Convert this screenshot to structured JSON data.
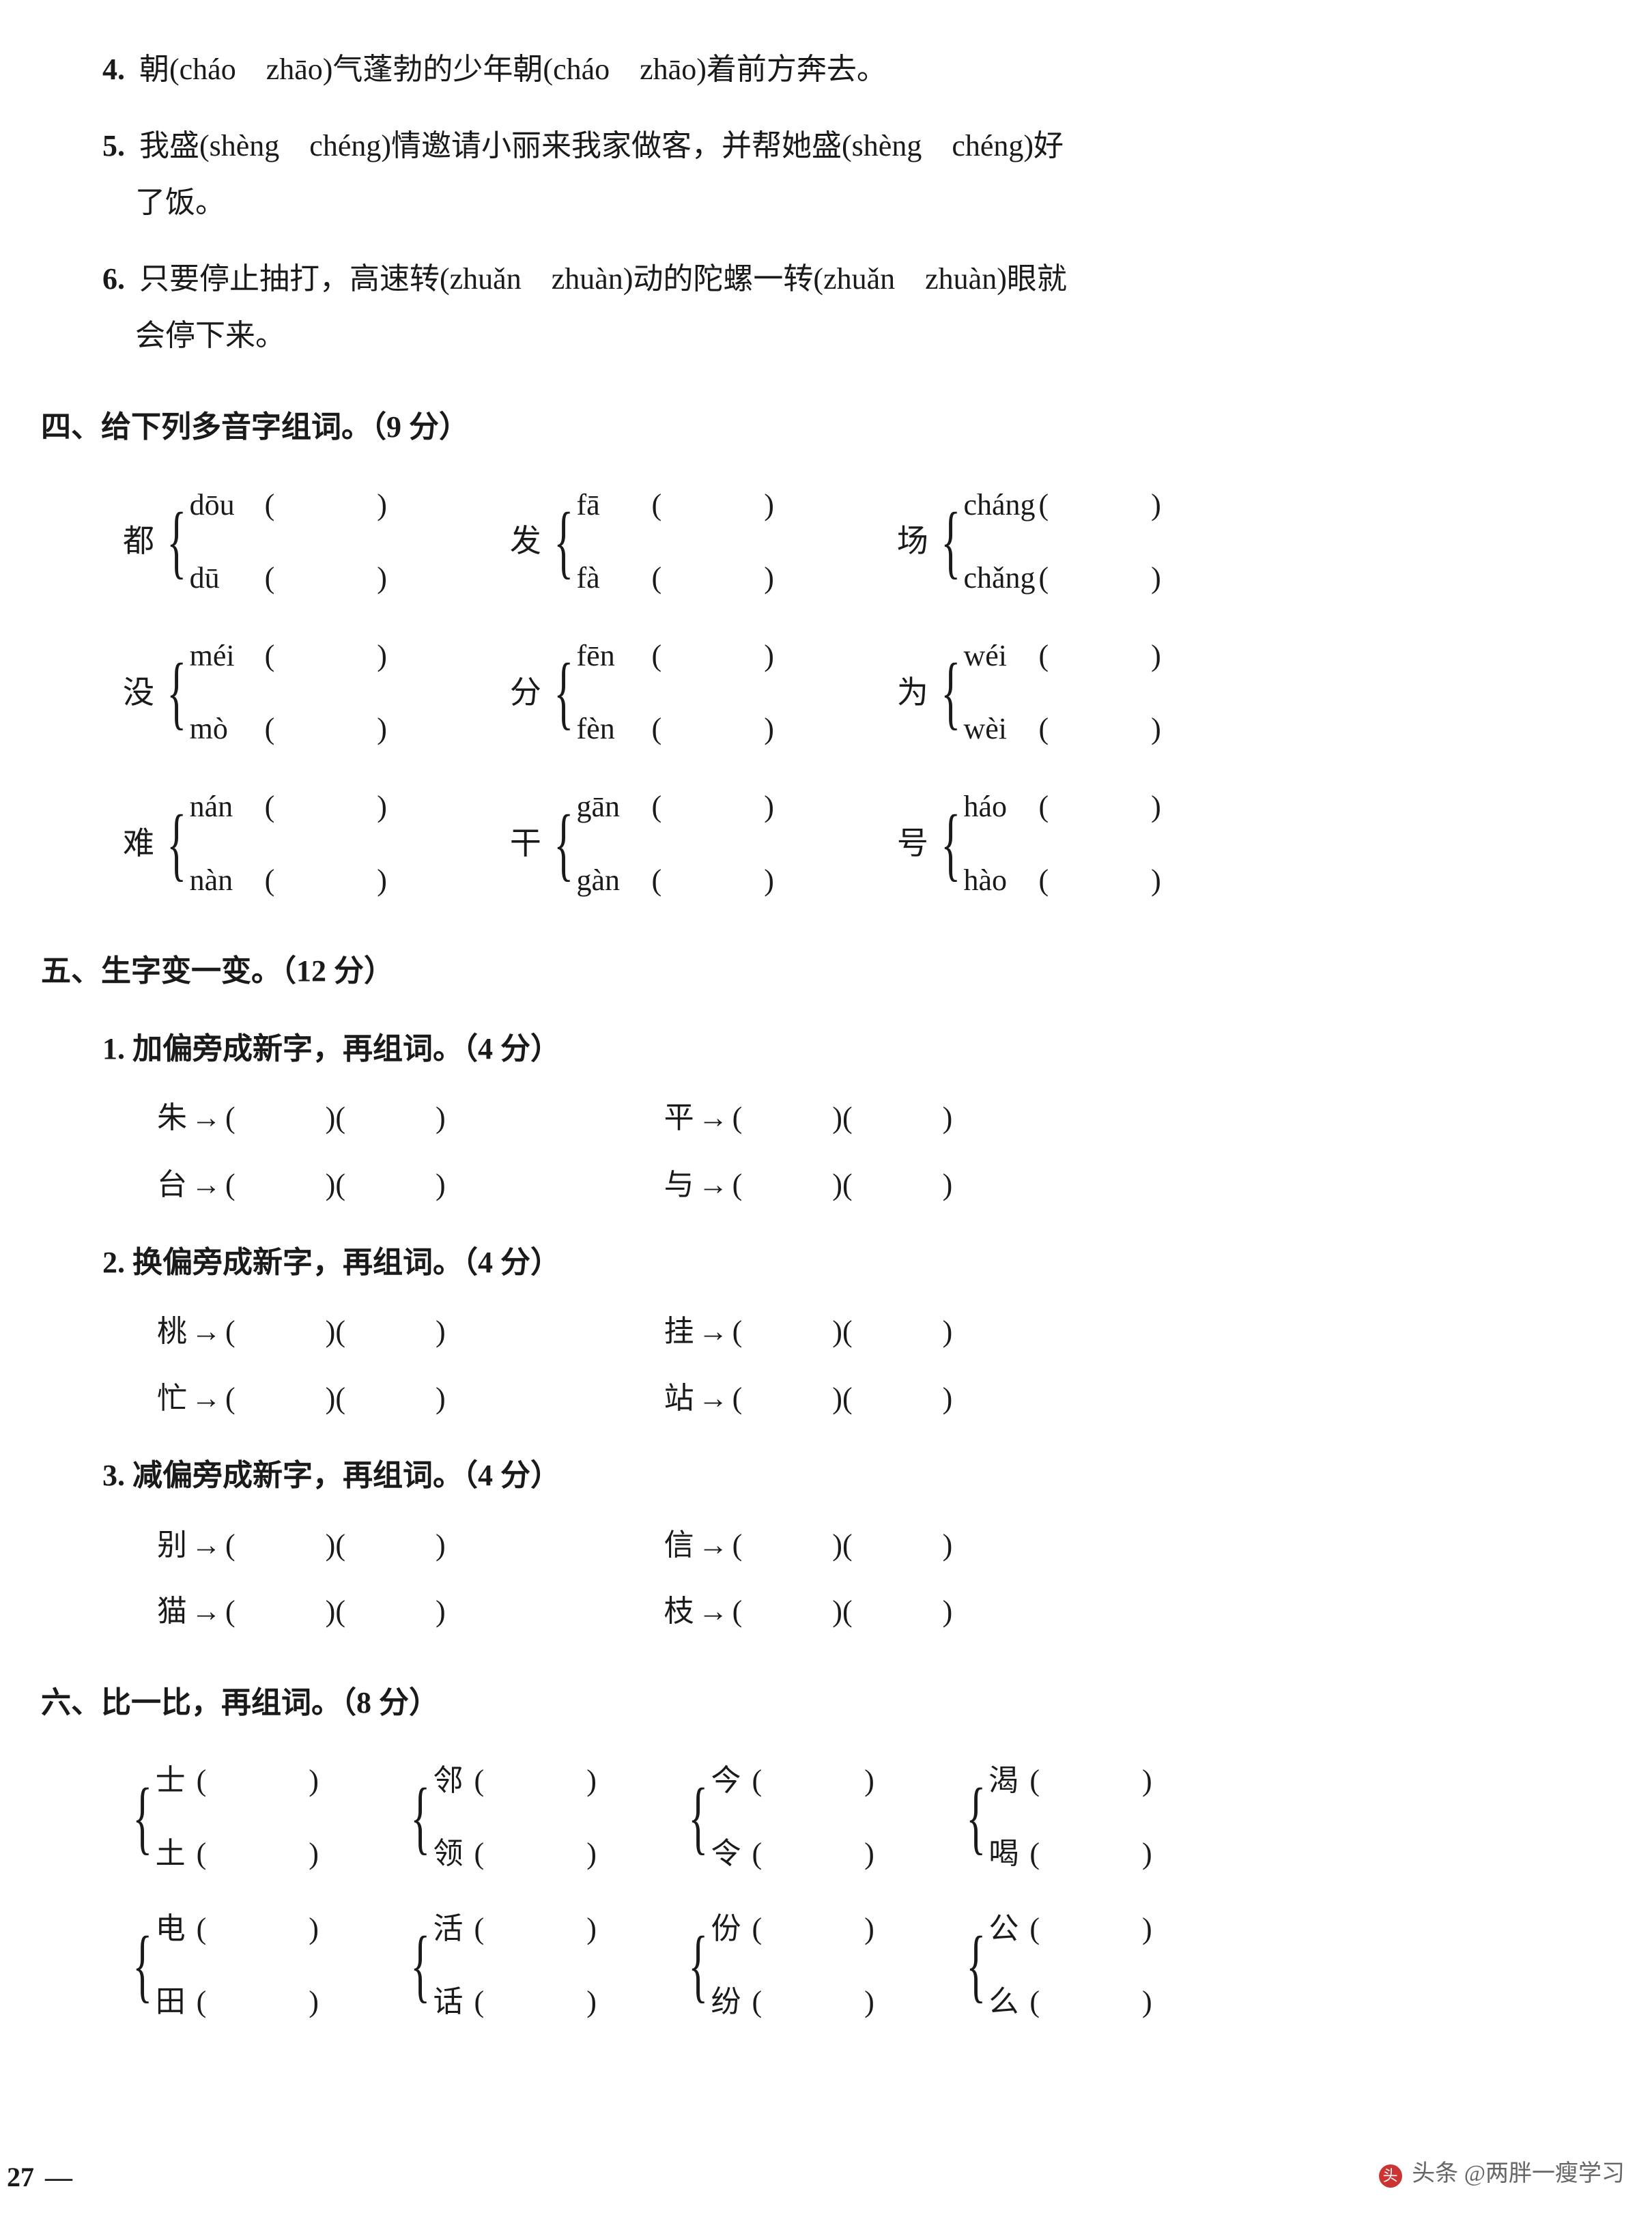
{
  "q3": {
    "items": [
      {
        "no": "4.",
        "segments": [
          "朝(cháo　zhāo)气蓬勃的少年朝(cháo　zhāo)着前方奔去。"
        ]
      },
      {
        "no": "5.",
        "segments": [
          "我盛(shèng　chéng)情邀请小丽来我家做客，并帮她盛(shèng　chéng)好",
          "了饭。"
        ]
      },
      {
        "no": "6.",
        "segments": [
          "只要停止抽打，高速转(zhuǎn　zhuàn)动的陀螺一转(zhuǎn　zhuàn)眼就",
          "会停下来。"
        ]
      }
    ]
  },
  "sec4": {
    "heading": "四、给下列多音字组词。（9 分）",
    "rows": [
      [
        {
          "char": "都",
          "readings": [
            "dōu",
            "dū"
          ]
        },
        {
          "char": "发",
          "readings": [
            "fā",
            "fà"
          ]
        },
        {
          "char": "场",
          "readings": [
            "cháng",
            "chǎng"
          ]
        }
      ],
      [
        {
          "char": "没",
          "readings": [
            "méi",
            "mò"
          ]
        },
        {
          "char": "分",
          "readings": [
            "fēn",
            "fèn"
          ]
        },
        {
          "char": "为",
          "readings": [
            "wéi",
            "wèi"
          ]
        }
      ],
      [
        {
          "char": "难",
          "readings": [
            "nán",
            "nàn"
          ]
        },
        {
          "char": "干",
          "readings": [
            "gān",
            "gàn"
          ]
        },
        {
          "char": "号",
          "readings": [
            "háo",
            "hào"
          ]
        }
      ]
    ]
  },
  "sec5": {
    "heading": "五、生字变一变。（12 分）",
    "subs": [
      {
        "title": "1. 加偏旁成新字，再组词。（4 分）",
        "rows": [
          [
            {
              "base": "朱"
            },
            {
              "base": "平"
            }
          ],
          [
            {
              "base": "台"
            },
            {
              "base": "与"
            }
          ]
        ]
      },
      {
        "title": "2. 换偏旁成新字，再组词。（4 分）",
        "rows": [
          [
            {
              "base": "桃"
            },
            {
              "base": "挂"
            }
          ],
          [
            {
              "base": "忙"
            },
            {
              "base": "站"
            }
          ]
        ]
      },
      {
        "title": "3. 减偏旁成新字，再组词。（4 分）",
        "rows": [
          [
            {
              "base": "别"
            },
            {
              "base": "信"
            }
          ],
          [
            {
              "base": "猫"
            },
            {
              "base": "枝"
            }
          ]
        ]
      }
    ]
  },
  "sec6": {
    "heading": "六、比一比，再组词。（8 分）",
    "rows": [
      [
        {
          "pair": [
            "士",
            "土"
          ]
        },
        {
          "pair": [
            "邻",
            "领"
          ]
        },
        {
          "pair": [
            "今",
            "令"
          ]
        },
        {
          "pair": [
            "渴",
            "喝"
          ]
        }
      ],
      [
        {
          "pair": [
            "电",
            "田"
          ]
        },
        {
          "pair": [
            "活",
            "话"
          ]
        },
        {
          "pair": [
            "份",
            "纷"
          ]
        },
        {
          "pair": [
            "公",
            "么"
          ]
        }
      ]
    ]
  },
  "footer": {
    "page": "27",
    "dash": "—",
    "watermark_prefix": "头条",
    "watermark_user": "@两胖一瘦学习"
  },
  "glyphs": {
    "brace_top": "⎧",
    "brace_mid": "⎨",
    "brace_bot": "⎩",
    "arrow": "→",
    "lparen": "(",
    "rparen": ")",
    "blank": "　　　"
  },
  "colors": {
    "text": "#1a1a1a",
    "bg": "#ffffff",
    "wm": "#666666",
    "wm_badge": "#c33333"
  },
  "typography": {
    "base_font_pt": 33,
    "heading_weight": "bold",
    "pinyin_font": "Times New Roman"
  }
}
